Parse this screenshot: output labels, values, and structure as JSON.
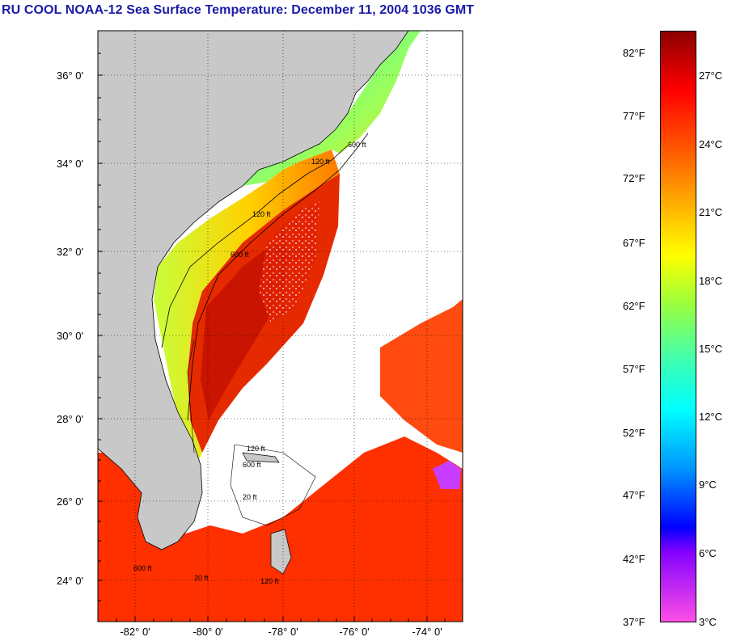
{
  "title": "RU COOL  NOAA-12  Sea Surface Temperature:  December 11, 2004 1036 GMT",
  "map": {
    "lat_labels": [
      "36° 0'",
      "34° 0'",
      "32° 0'",
      "30° 0'",
      "28° 0'",
      "26° 0'",
      "24° 0'"
    ],
    "lon_labels": [
      "-82° 0'",
      "-80° 0'",
      "-78° 0'",
      "-76° 0'",
      "-74° 0'"
    ],
    "depth_labels": [
      "120 ft",
      "600 ft",
      "120 ft",
      "600 ft",
      "120 ft",
      "600 ft",
      "20 ft",
      "120 ft",
      "600 ft",
      "20 ft"
    ],
    "land_color": "#c8c8c8",
    "cloud_color": "#ffffff"
  },
  "colorbar": {
    "fahrenheit_labels": [
      "82°F",
      "77°F",
      "72°F",
      "67°F",
      "62°F",
      "57°F",
      "52°F",
      "47°F",
      "42°F",
      "37°F"
    ],
    "celsius_labels": [
      "27°C",
      "24°C",
      "21°C",
      "18°C",
      "15°C",
      "12°C",
      "9°C",
      "6°C",
      "3°C"
    ],
    "gradient_stops": [
      "#8b0000",
      "#ff0000",
      "#ff6a00",
      "#ffc800",
      "#ffff00",
      "#9cff3c",
      "#3cffb4",
      "#00ffff",
      "#0096ff",
      "#0000ff",
      "#8000ff",
      "#ff50e6"
    ]
  }
}
